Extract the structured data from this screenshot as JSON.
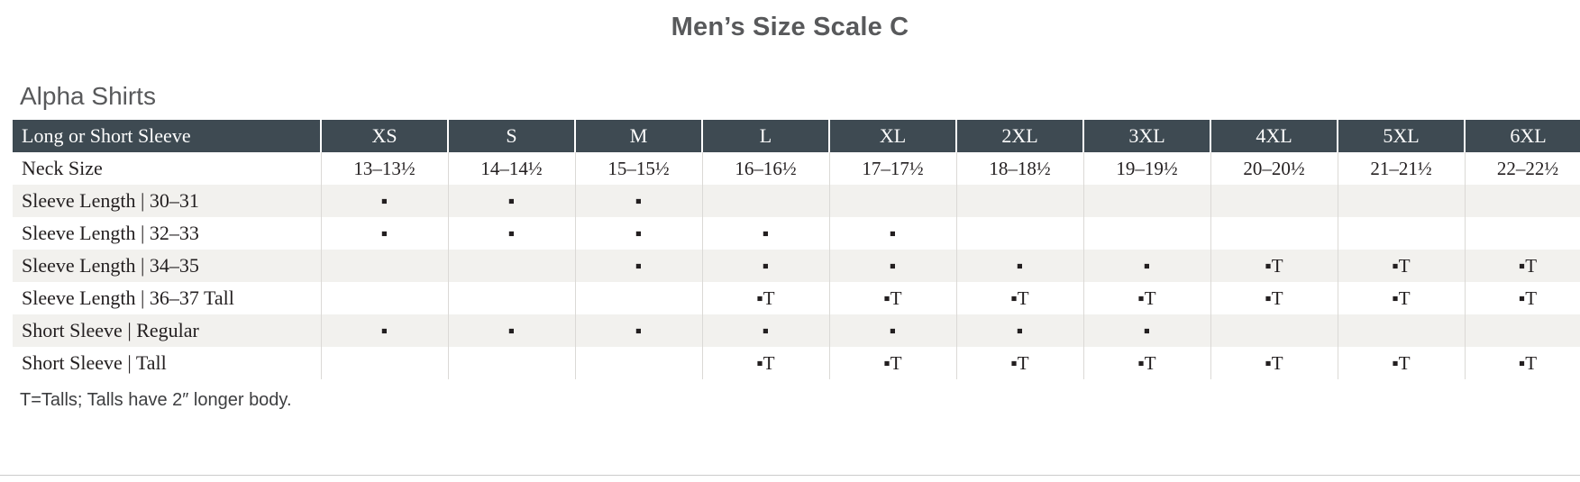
{
  "title": "Men’s Size Scale C",
  "section_heading": "Alpha Shirts",
  "footnote": "T=Talls; Talls have 2″ longer body.",
  "markers": {
    "dot": "▪",
    "tall": "▪T"
  },
  "colors": {
    "header_bg": "#3e4a52",
    "header_text": "#fdfdfd",
    "alt_row_bg": "#f2f1ee",
    "body_text": "#231f20",
    "heading_text": "#58595b",
    "grid_line": "#dbd9d6"
  },
  "table": {
    "header": [
      "Long or Short Sleeve",
      "XS",
      "S",
      "M",
      "L",
      "XL",
      "2XL",
      "3XL",
      "4XL",
      "5XL",
      "6XL"
    ],
    "rows": [
      {
        "label": "Neck Size",
        "cells": [
          "13–13½",
          "14–14½",
          "15–15½",
          "16–16½",
          "17–17½",
          "18–18½",
          "19–19½",
          "20–20½",
          "21–21½",
          "22–22½"
        ]
      },
      {
        "label": "Sleeve Length  |  30–31",
        "cells": [
          "▪",
          "▪",
          "▪",
          "",
          "",
          "",
          "",
          "",
          "",
          ""
        ]
      },
      {
        "label": "Sleeve Length  |  32–33",
        "cells": [
          "▪",
          "▪",
          "▪",
          "▪",
          "▪",
          "",
          "",
          "",
          "",
          ""
        ]
      },
      {
        "label": "Sleeve Length  |  34–35",
        "cells": [
          "",
          "",
          "▪",
          "▪",
          "▪",
          "▪",
          "▪",
          "▪T",
          "▪T",
          "▪T"
        ]
      },
      {
        "label": "Sleeve Length  |  36–37 Tall",
        "cells": [
          "",
          "",
          "",
          "▪T",
          "▪T",
          "▪T",
          "▪T",
          "▪T",
          "▪T",
          "▪T"
        ]
      },
      {
        "label": "Short Sleeve  |  Regular",
        "cells": [
          "▪",
          "▪",
          "▪",
          "▪",
          "▪",
          "▪",
          "▪",
          "",
          "",
          ""
        ]
      },
      {
        "label": "Short Sleeve  |  Tall",
        "cells": [
          "",
          "",
          "",
          "▪T",
          "▪T",
          "▪T",
          "▪T",
          "▪T",
          "▪T",
          "▪T"
        ]
      }
    ]
  }
}
